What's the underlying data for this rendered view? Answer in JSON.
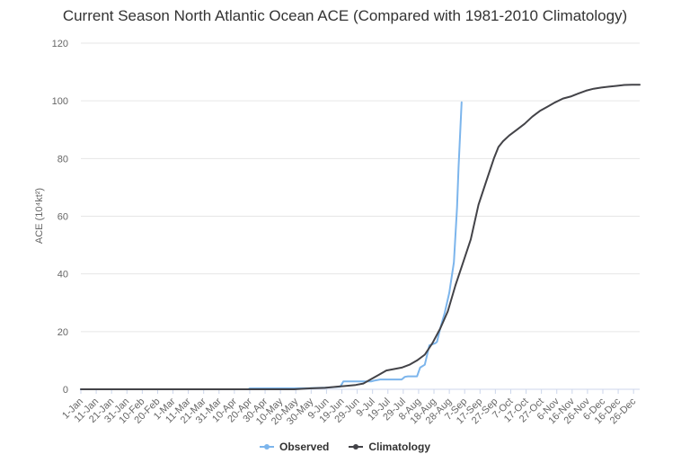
{
  "chart_data": {
    "type": "line",
    "title": "Current Season North Atlantic Ocean ACE (Compared with 1981-2010 Climatology)",
    "ylabel": "ACE (10⁴kt²)",
    "xlabel": "",
    "ylim": [
      0,
      120
    ],
    "yticks": [
      0,
      20,
      40,
      60,
      80,
      100,
      120
    ],
    "xlim_day": [
      1,
      365
    ],
    "x_tick_labels": [
      "1-Jan",
      "11-Jan",
      "21-Jan",
      "31-Jan",
      "10-Feb",
      "20-Feb",
      "1-Mar",
      "11-Mar",
      "21-Mar",
      "31-Mar",
      "10-Apr",
      "20-Apr",
      "30-Apr",
      "10-May",
      "20-May",
      "30-May",
      "9-Jun",
      "19-Jun",
      "29-Jun",
      "9-Jul",
      "19-Jul",
      "29-Jul",
      "8-Aug",
      "18-Aug",
      "28-Aug",
      "7-Sep",
      "17-Sep",
      "27-Sep",
      "7-Oct",
      "17-Oct",
      "27-Oct",
      "6-Nov",
      "16-Nov",
      "26-Nov",
      "6-Dec",
      "16-Dec",
      "26-Dec"
    ],
    "grid": "horizontal",
    "legend_position": "bottom-center",
    "series": [
      {
        "name": "Observed",
        "color": "#7cb5ec",
        "points": [
          [
            1,
            0
          ],
          [
            110,
            0
          ],
          [
            111,
            0.3
          ],
          [
            150,
            0.4
          ],
          [
            161,
            0.6
          ],
          [
            170,
            0.9
          ],
          [
            172,
            2.7
          ],
          [
            190,
            2.7
          ],
          [
            192,
            3
          ],
          [
            196,
            3.4
          ],
          [
            210,
            3.4
          ],
          [
            212,
            4.3
          ],
          [
            214,
            4.5
          ],
          [
            220,
            4.5
          ],
          [
            222,
            7.5
          ],
          [
            225,
            8.5
          ],
          [
            228,
            15.2
          ],
          [
            230,
            15.6
          ],
          [
            232,
            16
          ],
          [
            233,
            16.5
          ],
          [
            235,
            21
          ],
          [
            238,
            26.5
          ],
          [
            241,
            33.5
          ],
          [
            244,
            44
          ],
          [
            246,
            63
          ],
          [
            247,
            77
          ],
          [
            249,
            99.5
          ]
        ]
      },
      {
        "name": "Climatology",
        "color": "#434348",
        "points": [
          [
            1,
            0
          ],
          [
            140,
            0
          ],
          [
            150,
            0.3
          ],
          [
            160,
            0.5
          ],
          [
            170,
            1
          ],
          [
            180,
            1.5
          ],
          [
            185,
            2
          ],
          [
            190,
            3.5
          ],
          [
            195,
            5
          ],
          [
            200,
            6.5
          ],
          [
            205,
            7
          ],
          [
            210,
            7.5
          ],
          [
            215,
            8.5
          ],
          [
            220,
            10
          ],
          [
            225,
            12
          ],
          [
            230,
            16
          ],
          [
            235,
            21
          ],
          [
            240,
            27
          ],
          [
            245,
            36
          ],
          [
            250,
            44
          ],
          [
            255,
            52
          ],
          [
            260,
            64
          ],
          [
            265,
            72
          ],
          [
            270,
            80
          ],
          [
            273,
            84
          ],
          [
            276,
            86
          ],
          [
            280,
            88
          ],
          [
            285,
            90
          ],
          [
            290,
            92
          ],
          [
            295,
            94.5
          ],
          [
            300,
            96.5
          ],
          [
            305,
            98
          ],
          [
            310,
            99.5
          ],
          [
            315,
            100.8
          ],
          [
            320,
            101.5
          ],
          [
            325,
            102.5
          ],
          [
            330,
            103.5
          ],
          [
            335,
            104.2
          ],
          [
            340,
            104.6
          ],
          [
            345,
            104.9
          ],
          [
            350,
            105.2
          ],
          [
            355,
            105.5
          ],
          [
            360,
            105.6
          ],
          [
            365,
            105.6
          ]
        ]
      }
    ]
  }
}
